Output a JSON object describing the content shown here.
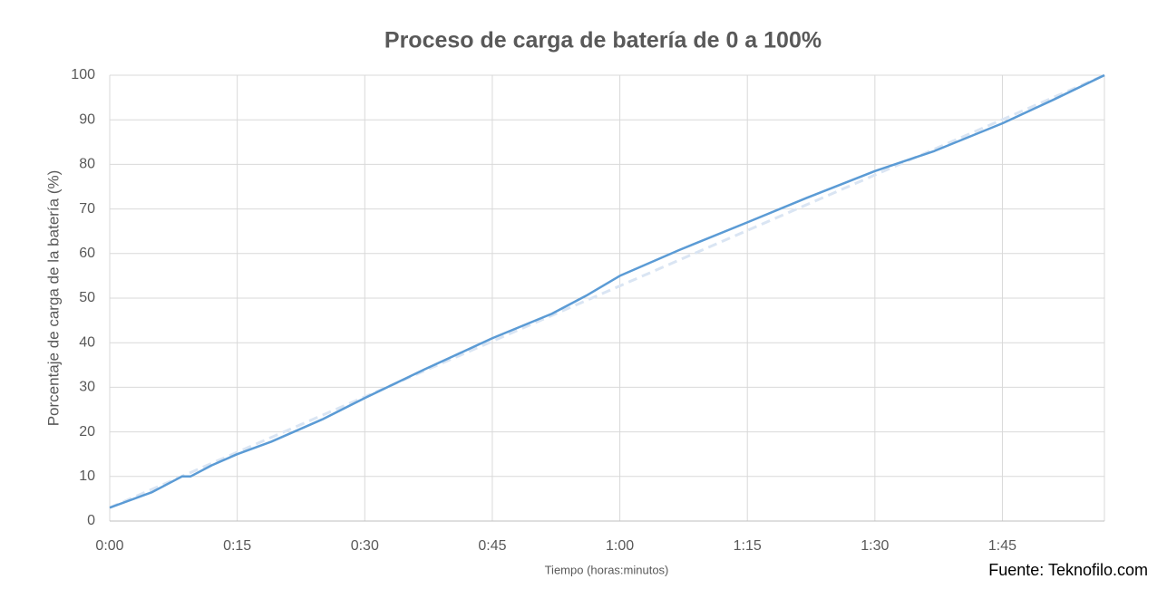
{
  "chart_data": {
    "type": "line",
    "title": "Proceso de carga de batería de 0 a 100%",
    "x_label": "Tiempo (horas:minutos)",
    "y_label": "Porcentaje de carga de la batería (%)",
    "source": "Fuente: Teknofilo.com",
    "xlim": [
      0,
      117
    ],
    "ylim": [
      0,
      100
    ],
    "xticks": [
      {
        "value": 0,
        "label": "0:00"
      },
      {
        "value": 15,
        "label": "0:15"
      },
      {
        "value": 30,
        "label": "0:30"
      },
      {
        "value": 45,
        "label": "0:45"
      },
      {
        "value": 60,
        "label": "1:00"
      },
      {
        "value": 75,
        "label": "1:15"
      },
      {
        "value": 90,
        "label": "1:30"
      },
      {
        "value": 105,
        "label": "1:45"
      }
    ],
    "yticks": [
      0,
      10,
      20,
      30,
      40,
      50,
      60,
      70,
      80,
      90,
      100
    ],
    "grid": true,
    "series": [
      {
        "color": "#dae5f3",
        "dashed": true,
        "x": [
          0,
          117
        ],
        "values": [
          3,
          100
        ]
      },
      {
        "color": "#5b9bd5",
        "dashed": false,
        "x": [
          0,
          5,
          8.5,
          9.5,
          12,
          15,
          19,
          25,
          30,
          37,
          45,
          52,
          56,
          60,
          67,
          75,
          82,
          90,
          97,
          105,
          111,
          117
        ],
        "values": [
          3,
          6.5,
          10,
          10,
          12.5,
          15,
          17.8,
          22.8,
          27.6,
          34,
          41,
          46.5,
          50.5,
          55,
          60.8,
          67,
          72.5,
          78.5,
          83,
          89.2,
          94.5,
          100
        ]
      }
    ]
  }
}
